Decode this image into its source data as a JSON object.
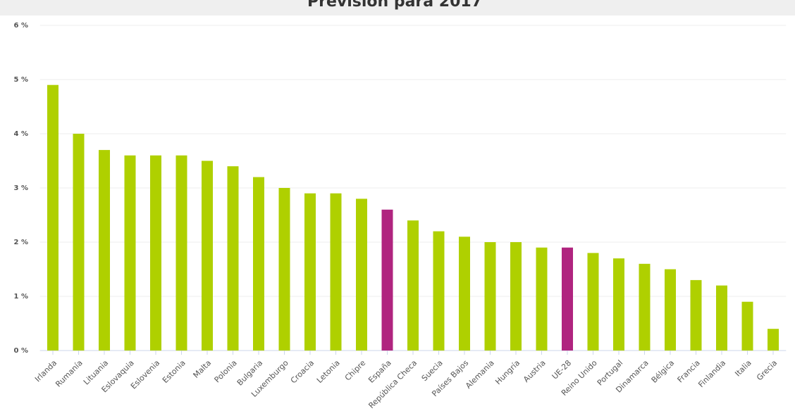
{
  "chart_data": {
    "type": "bar",
    "title": "Previsión para 2017",
    "categories": [
      "Irlanda",
      "Rumanía",
      "Lituania",
      "Eslovaquia",
      "Eslovenia",
      "Estonia",
      "Malta",
      "Polonia",
      "Bulgaria",
      "Luxemburgo",
      "Croacia",
      "Letonia",
      "Chipre",
      "España",
      "República Checa",
      "Suecia",
      "Países Bajos",
      "Alemania",
      "Hungría",
      "Austria",
      "UE-28",
      "Reino Unido",
      "Portugal",
      "Dinamarca",
      "Bélgica",
      "Francia",
      "Finlandia",
      "Italia",
      "Grecia"
    ],
    "values": [
      4.9,
      4.0,
      3.7,
      3.6,
      3.6,
      3.6,
      3.5,
      3.4,
      3.2,
      3.0,
      2.9,
      2.9,
      2.8,
      2.6,
      2.4,
      2.2,
      2.1,
      2.0,
      2.0,
      1.9,
      1.9,
      1.8,
      1.7,
      1.6,
      1.5,
      1.3,
      1.2,
      0.9,
      0.4
    ],
    "colors": [
      "#afd000",
      "#afd000",
      "#afd000",
      "#afd000",
      "#afd000",
      "#afd000",
      "#afd000",
      "#afd000",
      "#afd000",
      "#afd000",
      "#afd000",
      "#afd000",
      "#afd000",
      "#b0247f",
      "#afd000",
      "#afd000",
      "#afd000",
      "#afd000",
      "#afd000",
      "#afd000",
      "#b0247f",
      "#afd000",
      "#afd000",
      "#afd000",
      "#afd000",
      "#afd000",
      "#afd000",
      "#afd000",
      "#afd000"
    ],
    "ylim": [
      0,
      6
    ],
    "yticks": [
      {
        "value": 0,
        "label": "0 %"
      },
      {
        "value": 1,
        "label": "1 %"
      },
      {
        "value": 2,
        "label": "2 %"
      },
      {
        "value": 3,
        "label": "3 %"
      },
      {
        "value": 4,
        "label": "4 %"
      },
      {
        "value": 5,
        "label": "5 %"
      },
      {
        "value": 6,
        "label": "6 %"
      }
    ],
    "grid": true
  }
}
